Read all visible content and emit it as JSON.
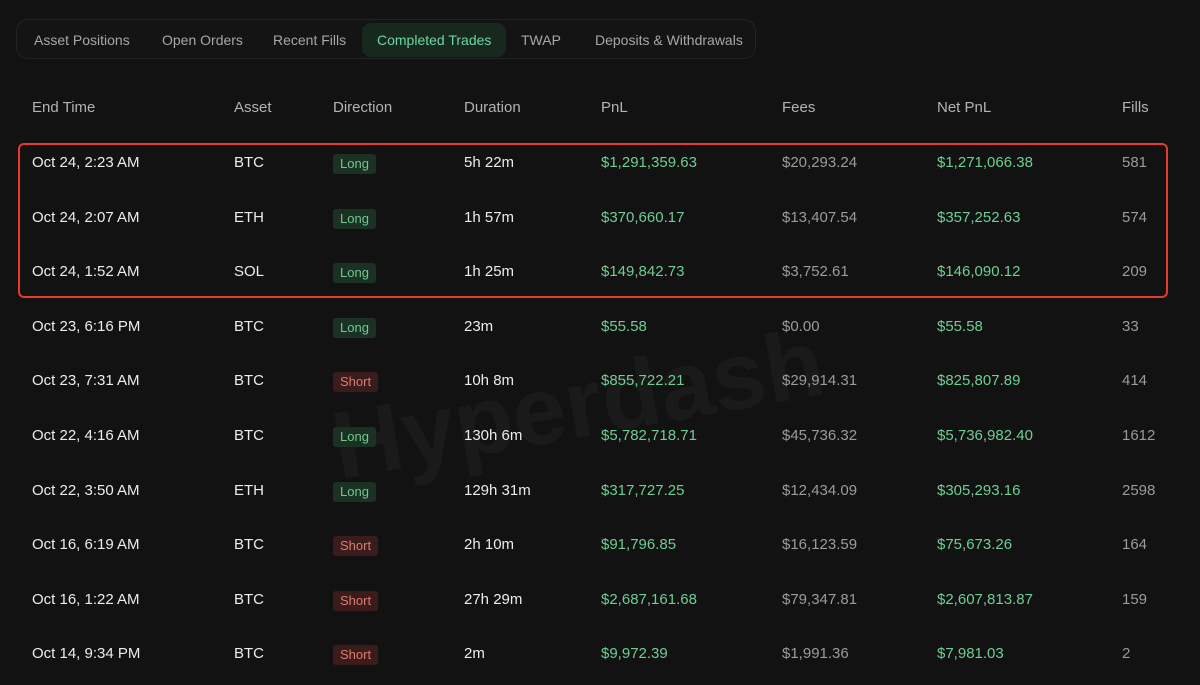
{
  "tabs": [
    {
      "label": "Asset Positions",
      "active": false
    },
    {
      "label": "Open Orders",
      "active": false
    },
    {
      "label": "Recent Fills",
      "active": false
    },
    {
      "label": "Completed Trades",
      "active": true
    },
    {
      "label": "TWAP",
      "active": false
    },
    {
      "label": "Deposits & Withdrawals",
      "active": false
    }
  ],
  "table": {
    "headers": {
      "end_time": "End Time",
      "asset": "Asset",
      "direction": "Direction",
      "duration": "Duration",
      "pnl": "PnL",
      "fees": "Fees",
      "net_pnl": "Net PnL",
      "fills": "Fills"
    },
    "rows": [
      {
        "end_time": "Oct 24, 2:23 AM",
        "asset": "BTC",
        "direction": "Long",
        "duration": "5h 22m",
        "pnl": "$1,291,359.63",
        "fees": "$20,293.24",
        "net_pnl": "$1,271,066.38",
        "fills": "581"
      },
      {
        "end_time": "Oct 24, 2:07 AM",
        "asset": "ETH",
        "direction": "Long",
        "duration": "1h 57m",
        "pnl": "$370,660.17",
        "fees": "$13,407.54",
        "net_pnl": "$357,252.63",
        "fills": "574"
      },
      {
        "end_time": "Oct 24, 1:52 AM",
        "asset": "SOL",
        "direction": "Long",
        "duration": "1h 25m",
        "pnl": "$149,842.73",
        "fees": "$3,752.61",
        "net_pnl": "$146,090.12",
        "fills": "209"
      },
      {
        "end_time": "Oct 23, 6:16 PM",
        "asset": "BTC",
        "direction": "Long",
        "duration": "23m",
        "pnl": "$55.58",
        "fees": "$0.00",
        "net_pnl": "$55.58",
        "fills": "33"
      },
      {
        "end_time": "Oct 23, 7:31 AM",
        "asset": "BTC",
        "direction": "Short",
        "duration": "10h 8m",
        "pnl": "$855,722.21",
        "fees": "$29,914.31",
        "net_pnl": "$825,807.89",
        "fills": "414"
      },
      {
        "end_time": "Oct 22, 4:16 AM",
        "asset": "BTC",
        "direction": "Long",
        "duration": "130h 6m",
        "pnl": "$5,782,718.71",
        "fees": "$45,736.32",
        "net_pnl": "$5,736,982.40",
        "fills": "1612"
      },
      {
        "end_time": "Oct 22, 3:50 AM",
        "asset": "ETH",
        "direction": "Long",
        "duration": "129h 31m",
        "pnl": "$317,727.25",
        "fees": "$12,434.09",
        "net_pnl": "$305,293.16",
        "fills": "2598"
      },
      {
        "end_time": "Oct 16, 6:19 AM",
        "asset": "BTC",
        "direction": "Short",
        "duration": "2h 10m",
        "pnl": "$91,796.85",
        "fees": "$16,123.59",
        "net_pnl": "$75,673.26",
        "fills": "164"
      },
      {
        "end_time": "Oct 16, 1:22 AM",
        "asset": "BTC",
        "direction": "Short",
        "duration": "27h 29m",
        "pnl": "$2,687,161.68",
        "fees": "$79,347.81",
        "net_pnl": "$2,607,813.87",
        "fills": "159"
      },
      {
        "end_time": "Oct 14, 9:34 PM",
        "asset": "BTC",
        "direction": "Short",
        "duration": "2m",
        "pnl": "$9,972.39",
        "fees": "$1,991.36",
        "net_pnl": "$7,981.03",
        "fills": "2"
      }
    ]
  },
  "watermark": "Hyperdash",
  "colors": {
    "background": "#121212",
    "positive": "#6fce92",
    "long_badge_bg": "#1a3123",
    "short_badge_bg": "#3a1d1b",
    "short_text": "#e07a72",
    "highlight_border": "#e33b2c",
    "active_tab_bg": "#17281f"
  }
}
